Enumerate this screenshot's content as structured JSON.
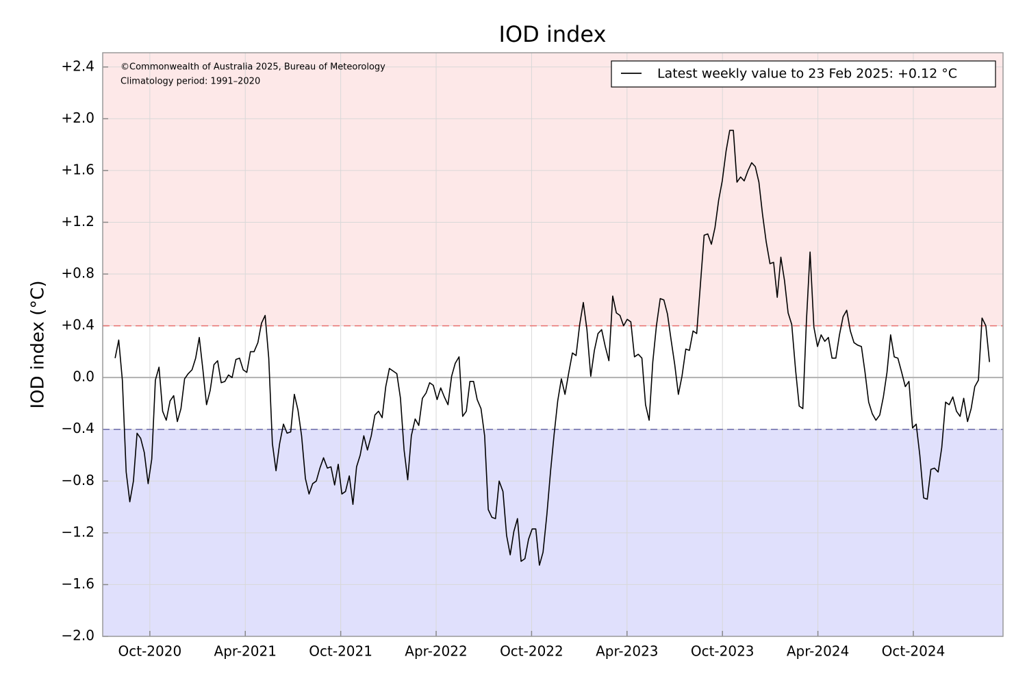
{
  "chart_data": {
    "type": "line",
    "title": "IOD index",
    "y_label": "IOD index (°C)",
    "annotations": [
      "©Commonwealth of Australia 2025, Bureau of Meteorology",
      "Climatology period: 1991–2020"
    ],
    "x": [
      2020.568,
      2020.587,
      2020.606,
      2020.626,
      2020.645,
      2020.664,
      2020.683,
      2020.702,
      2020.721,
      2020.741,
      2020.76,
      2020.779,
      2020.798,
      2020.817,
      2020.836,
      2020.856,
      2020.875,
      2020.894,
      2020.913,
      2020.932,
      2020.951,
      2020.971,
      2020.99,
      2021.009,
      2021.028,
      2021.047,
      2021.066,
      2021.086,
      2021.105,
      2021.124,
      2021.143,
      2021.162,
      2021.181,
      2021.201,
      2021.22,
      2021.239,
      2021.258,
      2021.277,
      2021.296,
      2021.316,
      2021.335,
      2021.354,
      2021.373,
      2021.392,
      2021.411,
      2021.43,
      2021.45,
      2021.469,
      2021.488,
      2021.507,
      2021.526,
      2021.545,
      2021.565,
      2021.584,
      2021.603,
      2021.622,
      2021.641,
      2021.66,
      2021.68,
      2021.699,
      2021.718,
      2021.737,
      2021.756,
      2021.775,
      2021.795,
      2021.814,
      2021.833,
      2021.852,
      2021.871,
      2021.89,
      2021.91,
      2021.929,
      2021.948,
      2021.967,
      2021.986,
      2022.005,
      2022.025,
      2022.044,
      2022.063,
      2022.082,
      2022.101,
      2022.12,
      2022.14,
      2022.159,
      2022.178,
      2022.197,
      2022.216,
      2022.235,
      2022.255,
      2022.274,
      2022.293,
      2022.312,
      2022.331,
      2022.35,
      2022.37,
      2022.389,
      2022.408,
      2022.427,
      2022.446,
      2022.465,
      2022.485,
      2022.504,
      2022.523,
      2022.542,
      2022.561,
      2022.58,
      2022.6,
      2022.619,
      2022.638,
      2022.657,
      2022.676,
      2022.695,
      2022.715,
      2022.734,
      2022.753,
      2022.772,
      2022.791,
      2022.81,
      2022.83,
      2022.849,
      2022.868,
      2022.887,
      2022.906,
      2022.925,
      2022.945,
      2022.964,
      2022.983,
      2023.002,
      2023.021,
      2023.04,
      2023.06,
      2023.079,
      2023.098,
      2023.117,
      2023.136,
      2023.155,
      2023.175,
      2023.194,
      2023.213,
      2023.232,
      2023.251,
      2023.27,
      2023.289,
      2023.309,
      2023.328,
      2023.347,
      2023.366,
      2023.385,
      2023.404,
      2023.424,
      2023.443,
      2023.462,
      2023.481,
      2023.5,
      2023.519,
      2023.538,
      2023.558,
      2023.577,
      2023.596,
      2023.615,
      2023.634,
      2023.654,
      2023.673,
      2023.692,
      2023.711,
      2023.73,
      2023.749,
      2023.769,
      2023.788,
      2023.807,
      2023.826,
      2023.845,
      2023.864,
      2023.884,
      2023.903,
      2023.922,
      2023.941,
      2023.96,
      2023.979,
      2023.999,
      2024.018,
      2024.037,
      2024.056,
      2024.075,
      2024.094,
      2024.113,
      2024.133,
      2024.152,
      2024.171,
      2024.19,
      2024.209,
      2024.229,
      2024.248,
      2024.267,
      2024.286,
      2024.305,
      2024.324,
      2024.344,
      2024.363,
      2024.382,
      2024.401,
      2024.42,
      2024.439,
      2024.459,
      2024.478,
      2024.497,
      2024.516,
      2024.535,
      2024.554,
      2024.574,
      2024.593,
      2024.612,
      2024.631,
      2024.65,
      2024.669,
      2024.689,
      2024.708,
      2024.727,
      2024.746,
      2024.765,
      2024.784,
      2024.804,
      2024.823,
      2024.842,
      2024.861,
      2024.88,
      2024.899,
      2024.919,
      2024.938,
      2024.957,
      2024.976,
      2024.995,
      2025.014,
      2025.034,
      2025.053,
      2025.072,
      2025.091,
      2025.11,
      2025.13,
      2025.149
    ],
    "series": [
      {
        "name": "Latest weekly value to 23 Feb 2025: +0.12 °C",
        "color": "#000000",
        "values": [
          0.15,
          0.29,
          -0.02,
          -0.73,
          -0.96,
          -0.8,
          -0.43,
          -0.47,
          -0.58,
          -0.82,
          -0.63,
          -0.02,
          0.08,
          -0.26,
          -0.33,
          -0.18,
          -0.14,
          -0.34,
          -0.24,
          -0.01,
          0.03,
          0.06,
          0.15,
          0.31,
          0.06,
          -0.21,
          -0.1,
          0.1,
          0.13,
          -0.04,
          -0.03,
          0.02,
          0.0,
          0.14,
          0.15,
          0.06,
          0.04,
          0.2,
          0.2,
          0.27,
          0.42,
          0.48,
          0.15,
          -0.51,
          -0.72,
          -0.51,
          -0.36,
          -0.43,
          -0.42,
          -0.13,
          -0.25,
          -0.45,
          -0.78,
          -0.9,
          -0.82,
          -0.8,
          -0.7,
          -0.62,
          -0.7,
          -0.69,
          -0.83,
          -0.67,
          -0.9,
          -0.88,
          -0.76,
          -0.98,
          -0.69,
          -0.6,
          -0.45,
          -0.56,
          -0.45,
          -0.29,
          -0.26,
          -0.31,
          -0.07,
          0.07,
          0.05,
          0.03,
          -0.16,
          -0.56,
          -0.79,
          -0.45,
          -0.32,
          -0.37,
          -0.16,
          -0.12,
          -0.04,
          -0.06,
          -0.17,
          -0.08,
          -0.15,
          -0.21,
          0.01,
          0.11,
          0.16,
          -0.3,
          -0.26,
          -0.03,
          -0.03,
          -0.17,
          -0.24,
          -0.45,
          -1.02,
          -1.08,
          -1.09,
          -0.8,
          -0.88,
          -1.22,
          -1.37,
          -1.19,
          -1.09,
          -1.42,
          -1.4,
          -1.25,
          -1.17,
          -1.17,
          -1.45,
          -1.35,
          -1.06,
          -0.73,
          -0.44,
          -0.18,
          -0.01,
          -0.13,
          0.04,
          0.19,
          0.17,
          0.41,
          0.58,
          0.37,
          0.01,
          0.21,
          0.34,
          0.37,
          0.24,
          0.13,
          0.63,
          0.5,
          0.48,
          0.4,
          0.45,
          0.43,
          0.16,
          0.18,
          0.15,
          -0.21,
          -0.33,
          0.12,
          0.4,
          0.61,
          0.6,
          0.49,
          0.29,
          0.1,
          -0.13,
          0.01,
          0.22,
          0.21,
          0.36,
          0.34,
          0.71,
          1.1,
          1.11,
          1.03,
          1.16,
          1.37,
          1.52,
          1.75,
          1.91,
          1.91,
          1.51,
          1.55,
          1.52,
          1.6,
          1.66,
          1.63,
          1.51,
          1.26,
          1.05,
          0.88,
          0.89,
          0.62,
          0.93,
          0.75,
          0.5,
          0.41,
          0.06,
          -0.22,
          -0.24,
          0.44,
          0.97,
          0.39,
          0.24,
          0.33,
          0.28,
          0.31,
          0.15,
          0.15,
          0.33,
          0.47,
          0.52,
          0.36,
          0.27,
          0.25,
          0.24,
          0.04,
          -0.19,
          -0.28,
          -0.33,
          -0.29,
          -0.15,
          0.04,
          0.33,
          0.16,
          0.15,
          0.04,
          -0.07,
          -0.03,
          -0.39,
          -0.36,
          -0.6,
          -0.93,
          -0.94,
          -0.71,
          -0.7,
          -0.73,
          -0.54,
          -0.19,
          -0.21,
          -0.15,
          -0.26,
          -0.3,
          -0.16,
          -0.34,
          -0.24,
          -0.07,
          -0.02,
          0.46,
          0.4,
          0.12
        ]
      }
    ],
    "xlim": [
      2020.503,
      2025.22
    ],
    "xticks": [
      {
        "value": 2020.75,
        "label": "Oct-2020"
      },
      {
        "value": 2021.25,
        "label": "Apr-2021"
      },
      {
        "value": 2021.75,
        "label": "Oct-2021"
      },
      {
        "value": 2022.25,
        "label": "Apr-2022"
      },
      {
        "value": 2022.75,
        "label": "Oct-2022"
      },
      {
        "value": 2023.25,
        "label": "Apr-2023"
      },
      {
        "value": 2023.75,
        "label": "Oct-2023"
      },
      {
        "value": 2024.25,
        "label": "Apr-2024"
      },
      {
        "value": 2024.75,
        "label": "Oct-2024"
      }
    ],
    "ylim": [
      -2.0,
      2.51
    ],
    "yticks": [
      {
        "value": -2.0,
        "label": "−2.0"
      },
      {
        "value": -1.6,
        "label": "−1.6"
      },
      {
        "value": -1.2,
        "label": "−1.2"
      },
      {
        "value": -0.8,
        "label": "−0.8"
      },
      {
        "value": -0.4,
        "label": "−0.4"
      },
      {
        "value": 0,
        "label": "0.0"
      },
      {
        "value": 0.4,
        "label": "+0.4"
      },
      {
        "value": 0.8,
        "label": "+0.8"
      },
      {
        "value": 1.2,
        "label": "+1.2"
      },
      {
        "value": 1.6,
        "label": "+1.6"
      },
      {
        "value": 2.0,
        "label": "+2.0"
      },
      {
        "value": 2.4,
        "label": "+2.4"
      }
    ],
    "grid": true,
    "legend": "upper right",
    "positive_threshold": 0.4,
    "positive_color": "#fde8e8",
    "positive_line_color": "#e8706e",
    "negative_threshold": -0.4,
    "negative_color": "#e0e0fc",
    "negative_line_color": "#6a6aa8"
  }
}
